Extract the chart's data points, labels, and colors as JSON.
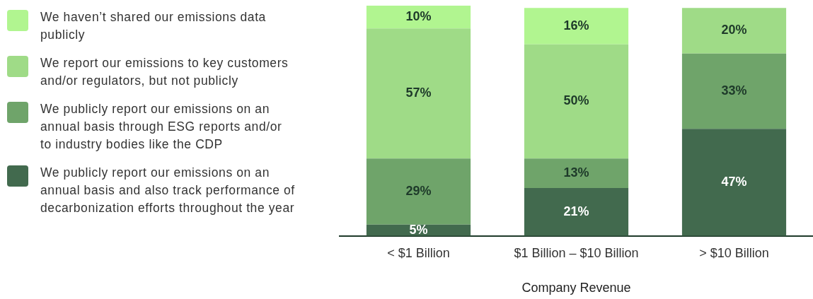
{
  "chart_data": {
    "type": "bar",
    "stacked": true,
    "xlabel": "Company Revenue",
    "categories": [
      "< $1 Billion",
      "$1 Billion – $10 Billion",
      "> $10 Billion"
    ],
    "legend": "left",
    "grid": false,
    "series": [
      {
        "name": "We publicly report our emissions on an annual basis and also track performance of decarbonization efforts throughout the year",
        "color": "#426a4e",
        "values": [
          5,
          21,
          47
        ],
        "value_labels": [
          "5%",
          "21%",
          "47%"
        ]
      },
      {
        "name": "We publicly report our emissions on an annual basis through ESG reports and/or to industry bodies like the CDP",
        "color": "#6fa46a",
        "values": [
          29,
          13,
          33
        ],
        "value_labels": [
          "29%",
          "13%",
          "33%"
        ]
      },
      {
        "name": "We report our emissions to key customers and/or regulators, but not publicly",
        "color": "#9fdb87",
        "values": [
          57,
          50,
          20
        ],
        "value_labels": [
          "57%",
          "50%",
          "20%"
        ]
      },
      {
        "name": "We haven’t shared our emissions data publicly",
        "color": "#b1f590",
        "values": [
          10,
          16,
          null
        ],
        "value_labels": [
          "10%",
          "16%",
          null
        ]
      }
    ]
  }
}
